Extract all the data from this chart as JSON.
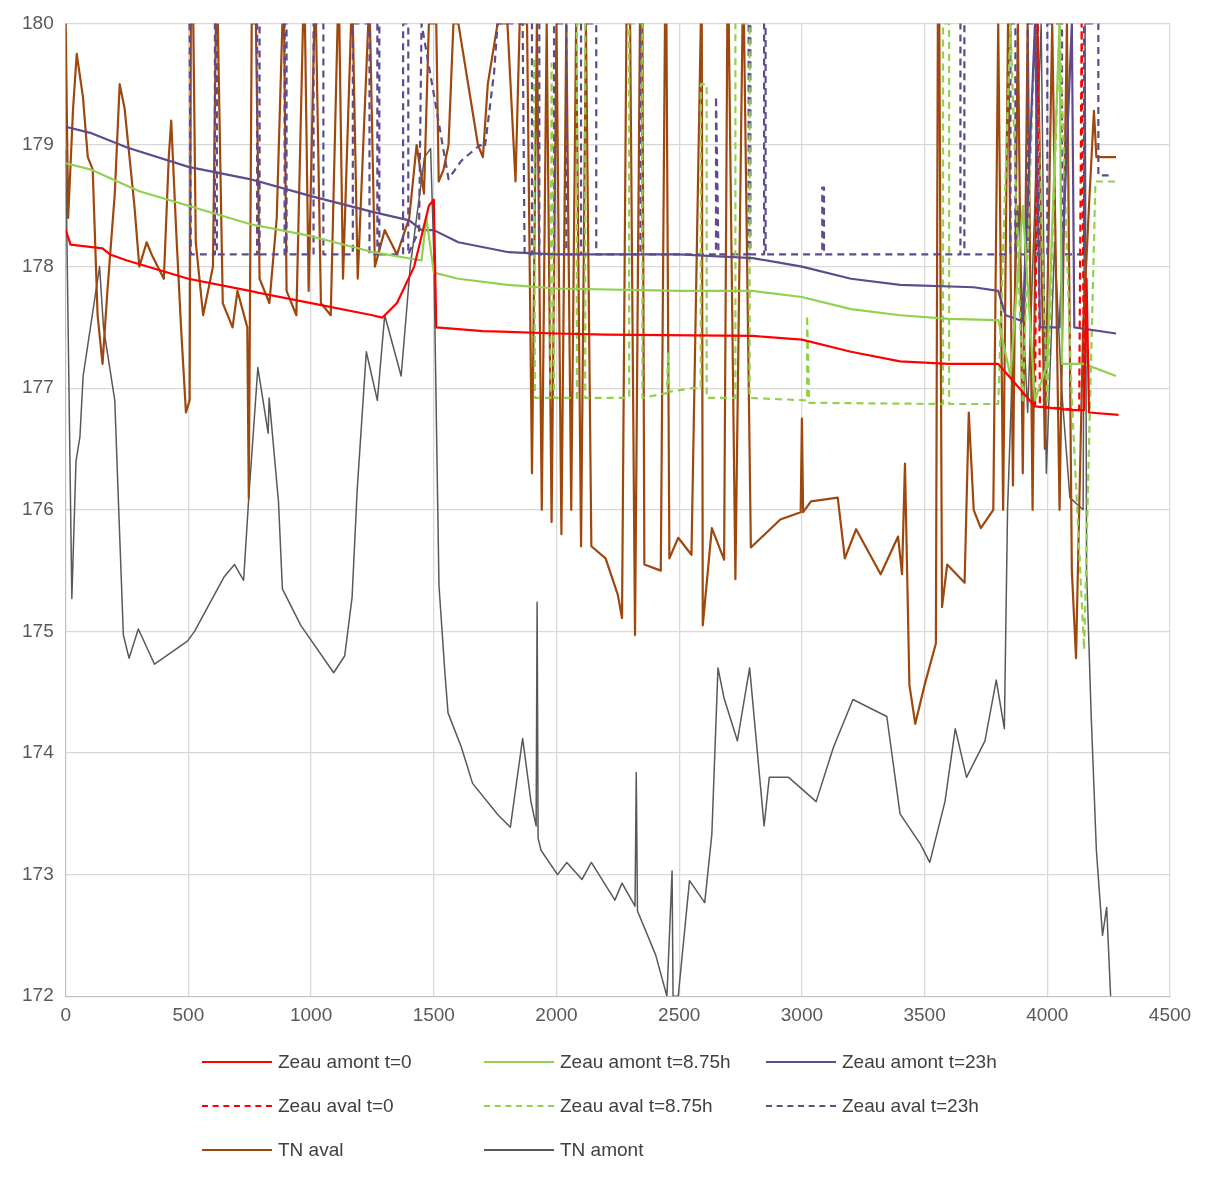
{
  "chart_data": {
    "type": "line",
    "xlim": [
      0,
      4500
    ],
    "xticks": [
      0,
      500,
      1000,
      1500,
      2000,
      2500,
      3000,
      3500,
      4000,
      4500
    ],
    "ylim": [
      172,
      180
    ],
    "yticks": [
      172,
      173,
      174,
      175,
      176,
      177,
      178,
      179,
      180
    ],
    "grid": true,
    "legend": "bottom",
    "marker": "none",
    "series": [
      {
        "name": "Zeau amont t=0",
        "color": "#ff0000",
        "line_style": "solid",
        "x": [
          0,
          20,
          150,
          180,
          250,
          500,
          750,
          1000,
          1250,
          1290,
          1350,
          1420,
          1480,
          1500,
          1510,
          1700,
          2000,
          2200,
          2800,
          3000,
          3200,
          3400,
          3600,
          3800,
          3950,
          4100,
          4150,
          4160,
          4170,
          4290
        ],
        "values": [
          178.3,
          178.18,
          178.15,
          178.1,
          178.05,
          177.9,
          177.8,
          177.7,
          177.6,
          177.58,
          177.7,
          178.0,
          178.5,
          178.55,
          177.5,
          177.47,
          177.45,
          177.44,
          177.43,
          177.4,
          177.3,
          177.22,
          177.2,
          177.2,
          176.85,
          176.82,
          176.82,
          177.9,
          176.8,
          176.78
        ]
      },
      {
        "name": "Zeau amont t=8.75h",
        "color": "#92d050",
        "line_style": "solid",
        "x": [
          0,
          100,
          300,
          500,
          750,
          1000,
          1250,
          1450,
          1470,
          1500,
          1600,
          1800,
          2000,
          2500,
          2800,
          3000,
          3200,
          3400,
          3600,
          3800,
          3850,
          3900,
          3950,
          4000,
          4050,
          4060,
          4150,
          4280
        ],
        "values": [
          178.85,
          178.8,
          178.62,
          178.5,
          178.35,
          178.25,
          178.12,
          178.05,
          178.4,
          177.95,
          177.9,
          177.85,
          177.82,
          177.8,
          177.8,
          177.75,
          177.65,
          177.6,
          177.57,
          177.56,
          177.1,
          178.5,
          176.9,
          177.2,
          180,
          177.2,
          177.2,
          177.1
        ]
      },
      {
        "name": "Zeau amont t=23h",
        "color": "#5f4b8b",
        "line_style": "solid",
        "x": [
          0,
          100,
          250,
          500,
          750,
          1000,
          1250,
          1400,
          1450,
          1500,
          1600,
          1800,
          2000,
          2500,
          2800,
          3000,
          3200,
          3400,
          3700,
          3800,
          3830,
          3900,
          3950,
          3970,
          4050,
          4100,
          4110,
          4280
        ],
        "values": [
          179.15,
          179.1,
          178.98,
          178.82,
          178.72,
          178.58,
          178.45,
          178.38,
          178.3,
          178.3,
          178.2,
          178.12,
          178.1,
          178.1,
          178.07,
          178.0,
          177.9,
          177.85,
          177.83,
          177.8,
          177.6,
          177.55,
          180,
          177.5,
          177.5,
          180,
          177.5,
          177.45
        ]
      },
      {
        "name": "Zeau aval t=0",
        "color": "#ff0000",
        "line_style": "dashed",
        "x": [
          3950,
          3960,
          3970,
          4130,
          4140,
          4150
        ],
        "values": [
          176.85,
          180,
          176.85,
          176.82,
          180,
          176.82
        ]
      },
      {
        "name": "Zeau aval t=8.75h",
        "color": "#92d050",
        "line_style": "dashed",
        "x": [
          1908,
          1912,
          1975,
          1980,
          1990,
          2083,
          2083,
          2117,
          2117,
          2296,
          2296,
          2350,
          2350,
          2450,
          2455,
          2460,
          2550,
          2588,
          2588,
          2612,
          2612,
          2729,
          2729,
          2787,
          2787,
          3021,
          3021,
          3030,
          3575,
          3575,
          3600,
          3600,
          3800,
          3850,
          3900,
          3950,
          4000,
          4050,
          4100,
          4150,
          4196,
          4280
        ],
        "values": [
          179.7,
          176.92,
          176.92,
          179.67,
          176.92,
          176.92,
          180,
          180,
          176.92,
          176.92,
          180,
          180,
          176.92,
          176.96,
          177.3,
          176.97,
          177.0,
          177.0,
          179.5,
          179.5,
          176.92,
          176.92,
          180,
          180,
          176.92,
          176.9,
          177.6,
          176.88,
          176.87,
          180,
          180,
          176.87,
          176.87,
          180,
          176.9,
          180,
          176.9,
          180,
          176.9,
          174.85,
          178.7,
          178.7
        ]
      },
      {
        "name": "Zeau aval t=23h",
        "color": "#5f4b8b",
        "line_style": "dashed",
        "x": [
          505,
          510,
          608,
          608,
          616,
          616,
          780,
          780,
          790,
          790,
          892,
          892,
          900,
          900,
          1010,
          1010,
          1050,
          1050,
          1170,
          1170,
          1238,
          1238,
          1270,
          1270,
          1278,
          1278,
          1375,
          1375,
          1396,
          1396,
          1440,
          1450,
          1560,
          1612,
          1688,
          1708,
          1746,
          1760,
          1862,
          1870,
          1900,
          1900,
          1930,
          1930,
          1990,
          1990,
          2040,
          2040,
          2100,
          2100,
          2162,
          2162,
          2342,
          2342,
          2350,
          2350,
          2650,
          2650,
          2660,
          2783,
          2783,
          2790,
          2790,
          2846,
          2846,
          2852,
          2852,
          3083,
          3083,
          3090,
          3090,
          3646,
          3646,
          3662,
          3662,
          3850,
          3850,
          3870,
          3870,
          3920,
          3920,
          3960,
          3960,
          4000,
          4000,
          4060,
          4060,
          4150,
          4150,
          4208,
          4208,
          4250
        ],
        "values": [
          180,
          178.1,
          178.1,
          180,
          180,
          178.1,
          178.1,
          180,
          180,
          178.1,
          178.1,
          180,
          180,
          178.1,
          178.1,
          180,
          180,
          178.1,
          178.1,
          180,
          180,
          178.1,
          178.1,
          180,
          180,
          178.1,
          178.1,
          180,
          180,
          178.1,
          178.3,
          180,
          178.72,
          178.87,
          179.0,
          178.98,
          179.6,
          180,
          180,
          178.1,
          178.1,
          180,
          180,
          178.1,
          178.1,
          180,
          180,
          178.1,
          178.1,
          180,
          180,
          178.1,
          178.1,
          180,
          180,
          178.1,
          178.1,
          179.4,
          178.1,
          178.1,
          180,
          180,
          178.1,
          178.1,
          180,
          180,
          178.1,
          178.1,
          178.65,
          178.65,
          178.1,
          178.1,
          180,
          180,
          178.1,
          178.1,
          180,
          180,
          178.1,
          178.1,
          180,
          180,
          178.1,
          178.1,
          180,
          180,
          178.1,
          178.1,
          180,
          180,
          178.75,
          178.75
        ]
      },
      {
        "name": "TN aval",
        "color": "#9e480e",
        "line_style": "solid",
        "x": [
          0,
          10,
          30,
          45,
          70,
          90,
          110,
          130,
          150,
          170,
          200,
          220,
          240,
          280,
          300,
          330,
          350,
          400,
          420,
          430,
          450,
          470,
          490,
          505,
          510,
          520,
          530,
          560,
          600,
          612,
          620,
          640,
          680,
          700,
          740,
          746,
          758,
          775,
          790,
          830,
          860,
          883,
          890,
          900,
          940,
          967,
          975,
          990,
          1013,
          1020,
          1040,
          1080,
          1108,
          1115,
          1130,
          1163,
          1170,
          1190,
          1233,
          1240,
          1260,
          1300,
          1350,
          1400,
          1430,
          1460,
          1480,
          1510,
          1520,
          1540,
          1560,
          1580,
          1600,
          1640,
          1680,
          1700,
          1720,
          1760,
          1800,
          1833,
          1850,
          1880,
          1900,
          1920,
          1940,
          1960,
          1980,
          2000,
          2020,
          2040,
          2060,
          2080,
          2100,
          2120,
          2142,
          2200,
          2250,
          2267,
          2285,
          2300,
          2320,
          2340,
          2350,
          2358,
          2425,
          2442,
          2448,
          2460,
          2496,
          2550,
          2588,
          2592,
          2596,
          2633,
          2683,
          2696,
          2702,
          2729,
          2758,
          2764,
          2792,
          2912,
          2995,
          3000,
          3005,
          3037,
          3146,
          3175,
          3221,
          3321,
          3392,
          3408,
          3420,
          3438,
          3462,
          3500,
          3546,
          3554,
          3560,
          3571,
          3592,
          3663,
          3680,
          3700,
          3729,
          3780,
          3800,
          3820,
          3840,
          3860,
          3880,
          3900,
          3920,
          3940,
          3960,
          3990,
          4020,
          4050,
          4080,
          4100,
          4117,
          4146,
          4170,
          4190,
          4200,
          4280
        ],
        "values": [
          180,
          178.4,
          179.3,
          179.75,
          179.4,
          178.9,
          178.8,
          177.6,
          177.2,
          177.8,
          178.6,
          179.5,
          179.3,
          178.5,
          178.0,
          178.2,
          178.1,
          177.9,
          178.9,
          179.2,
          178.3,
          177.5,
          176.8,
          176.9,
          180,
          180,
          178.2,
          177.6,
          178.0,
          180,
          180,
          177.7,
          177.5,
          177.8,
          177.5,
          176.1,
          180,
          180,
          177.9,
          177.7,
          178.4,
          180,
          180,
          177.8,
          177.6,
          180,
          180,
          177.8,
          180,
          180,
          177.7,
          177.6,
          180,
          180,
          177.9,
          180,
          180,
          177.9,
          180,
          180,
          178.0,
          178.3,
          178.1,
          178.4,
          179.0,
          178.6,
          180,
          180,
          178.7,
          178.8,
          179.0,
          180,
          180,
          179.5,
          179.0,
          178.9,
          179.5,
          180,
          180,
          178.7,
          180,
          180,
          176.3,
          180,
          176.0,
          180,
          175.9,
          180,
          175.8,
          180,
          176.0,
          180,
          175.7,
          180,
          175.7,
          175.6,
          175.3,
          175.11,
          180,
          180,
          174.97,
          180,
          180,
          175.55,
          175.5,
          180,
          180,
          175.6,
          175.77,
          175.63,
          180,
          180,
          175.05,
          175.85,
          175.59,
          180,
          180,
          175.43,
          180,
          180,
          175.69,
          175.92,
          175.98,
          176.75,
          175.98,
          176.07,
          176.1,
          175.6,
          175.84,
          175.47,
          175.78,
          175.47,
          176.38,
          174.56,
          174.24,
          174.56,
          174.9,
          180,
          180,
          175.2,
          175.55,
          175.4,
          176.8,
          176.0,
          175.85,
          176.0,
          180,
          176.0,
          180,
          176.2,
          180,
          176.3,
          180,
          176.0,
          180,
          176.5,
          180,
          176.0,
          180,
          175.5,
          174.78,
          177.5,
          178.5,
          179.28,
          178.9,
          178.9
        ]
      },
      {
        "name": "TN amont",
        "color": "#595959",
        "line_style": "solid",
        "x": [
          0,
          25,
          42,
          58,
          71,
          138,
          154,
          200,
          213,
          235,
          258,
          296,
          362,
          496,
          525,
          646,
          688,
          725,
          746,
          783,
          825,
          829,
          867,
          883,
          958,
          1092,
          1137,
          1167,
          1188,
          1225,
          1270,
          1300,
          1367,
          1404,
          1462,
          1487,
          1500,
          1517,
          1521,
          1546,
          1558,
          1612,
          1658,
          1762,
          1812,
          1862,
          1896,
          1917,
          1921,
          1925,
          1937,
          2004,
          2042,
          2104,
          2142,
          2238,
          2267,
          2320,
          2325,
          2330,
          2404,
          2450,
          2471,
          2475,
          2496,
          2542,
          2604,
          2633,
          2658,
          2683,
          2737,
          2787,
          2846,
          2867,
          2946,
          3058,
          3129,
          3208,
          3346,
          3400,
          3483,
          3521,
          3583,
          3625,
          3671,
          3746,
          3792,
          3825,
          3838,
          3880,
          3920,
          3975,
          3996,
          4030,
          4058,
          4092,
          4146,
          4154,
          4160,
          4179,
          4200,
          4225,
          4242,
          4258
        ],
        "values": [
          178.96,
          175.27,
          176.4,
          176.6,
          177.1,
          178.0,
          177.5,
          176.9,
          176.17,
          174.97,
          174.78,
          175.02,
          174.73,
          174.92,
          175.0,
          175.45,
          175.55,
          175.42,
          176.1,
          177.17,
          176.63,
          176.92,
          176.07,
          175.35,
          175.05,
          174.66,
          174.8,
          175.28,
          176.17,
          177.3,
          176.9,
          177.6,
          177.1,
          178.0,
          178.9,
          178.97,
          178.1,
          175.9,
          175.38,
          174.64,
          174.33,
          174.05,
          173.75,
          173.49,
          173.39,
          174.12,
          173.6,
          173.4,
          175.24,
          173.3,
          173.2,
          173.0,
          173.1,
          172.96,
          173.1,
          172.79,
          172.93,
          172.74,
          173.84,
          172.7,
          172.34,
          172.0,
          173.03,
          172.0,
          172.0,
          172.95,
          172.77,
          173.33,
          174.7,
          174.45,
          174.1,
          174.7,
          173.4,
          173.8,
          173.8,
          173.6,
          174.05,
          174.44,
          174.3,
          173.5,
          173.25,
          173.1,
          173.6,
          174.2,
          173.8,
          174.1,
          174.6,
          174.2,
          176.0,
          178.5,
          176.8,
          180,
          176.3,
          178.2,
          177.0,
          176.1,
          176.0,
          180,
          175.5,
          174.3,
          173.2,
          172.5,
          172.73,
          172.0
        ]
      }
    ]
  }
}
